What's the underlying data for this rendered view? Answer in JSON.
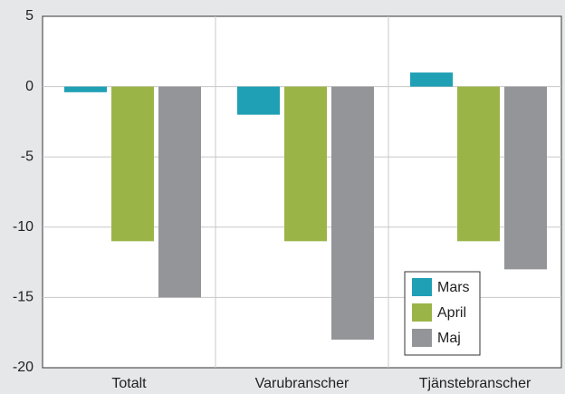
{
  "chart_data": {
    "type": "bar",
    "categories": [
      "Totalt",
      "Varubranscher",
      "Tjänstebranscher"
    ],
    "series": [
      {
        "name": "Mars",
        "color": "#1fa0b5",
        "values": [
          -0.4,
          -2,
          1
        ]
      },
      {
        "name": "April",
        "color": "#9bb447",
        "values": [
          -11,
          -11,
          -11
        ]
      },
      {
        "name": "Maj",
        "color": "#939598",
        "values": [
          -15,
          -18,
          -13
        ]
      }
    ],
    "ylim": [
      -20,
      5
    ],
    "yticks": [
      -20,
      -15,
      -10,
      -5,
      0,
      5
    ],
    "grid": true,
    "legend": "lower right"
  }
}
